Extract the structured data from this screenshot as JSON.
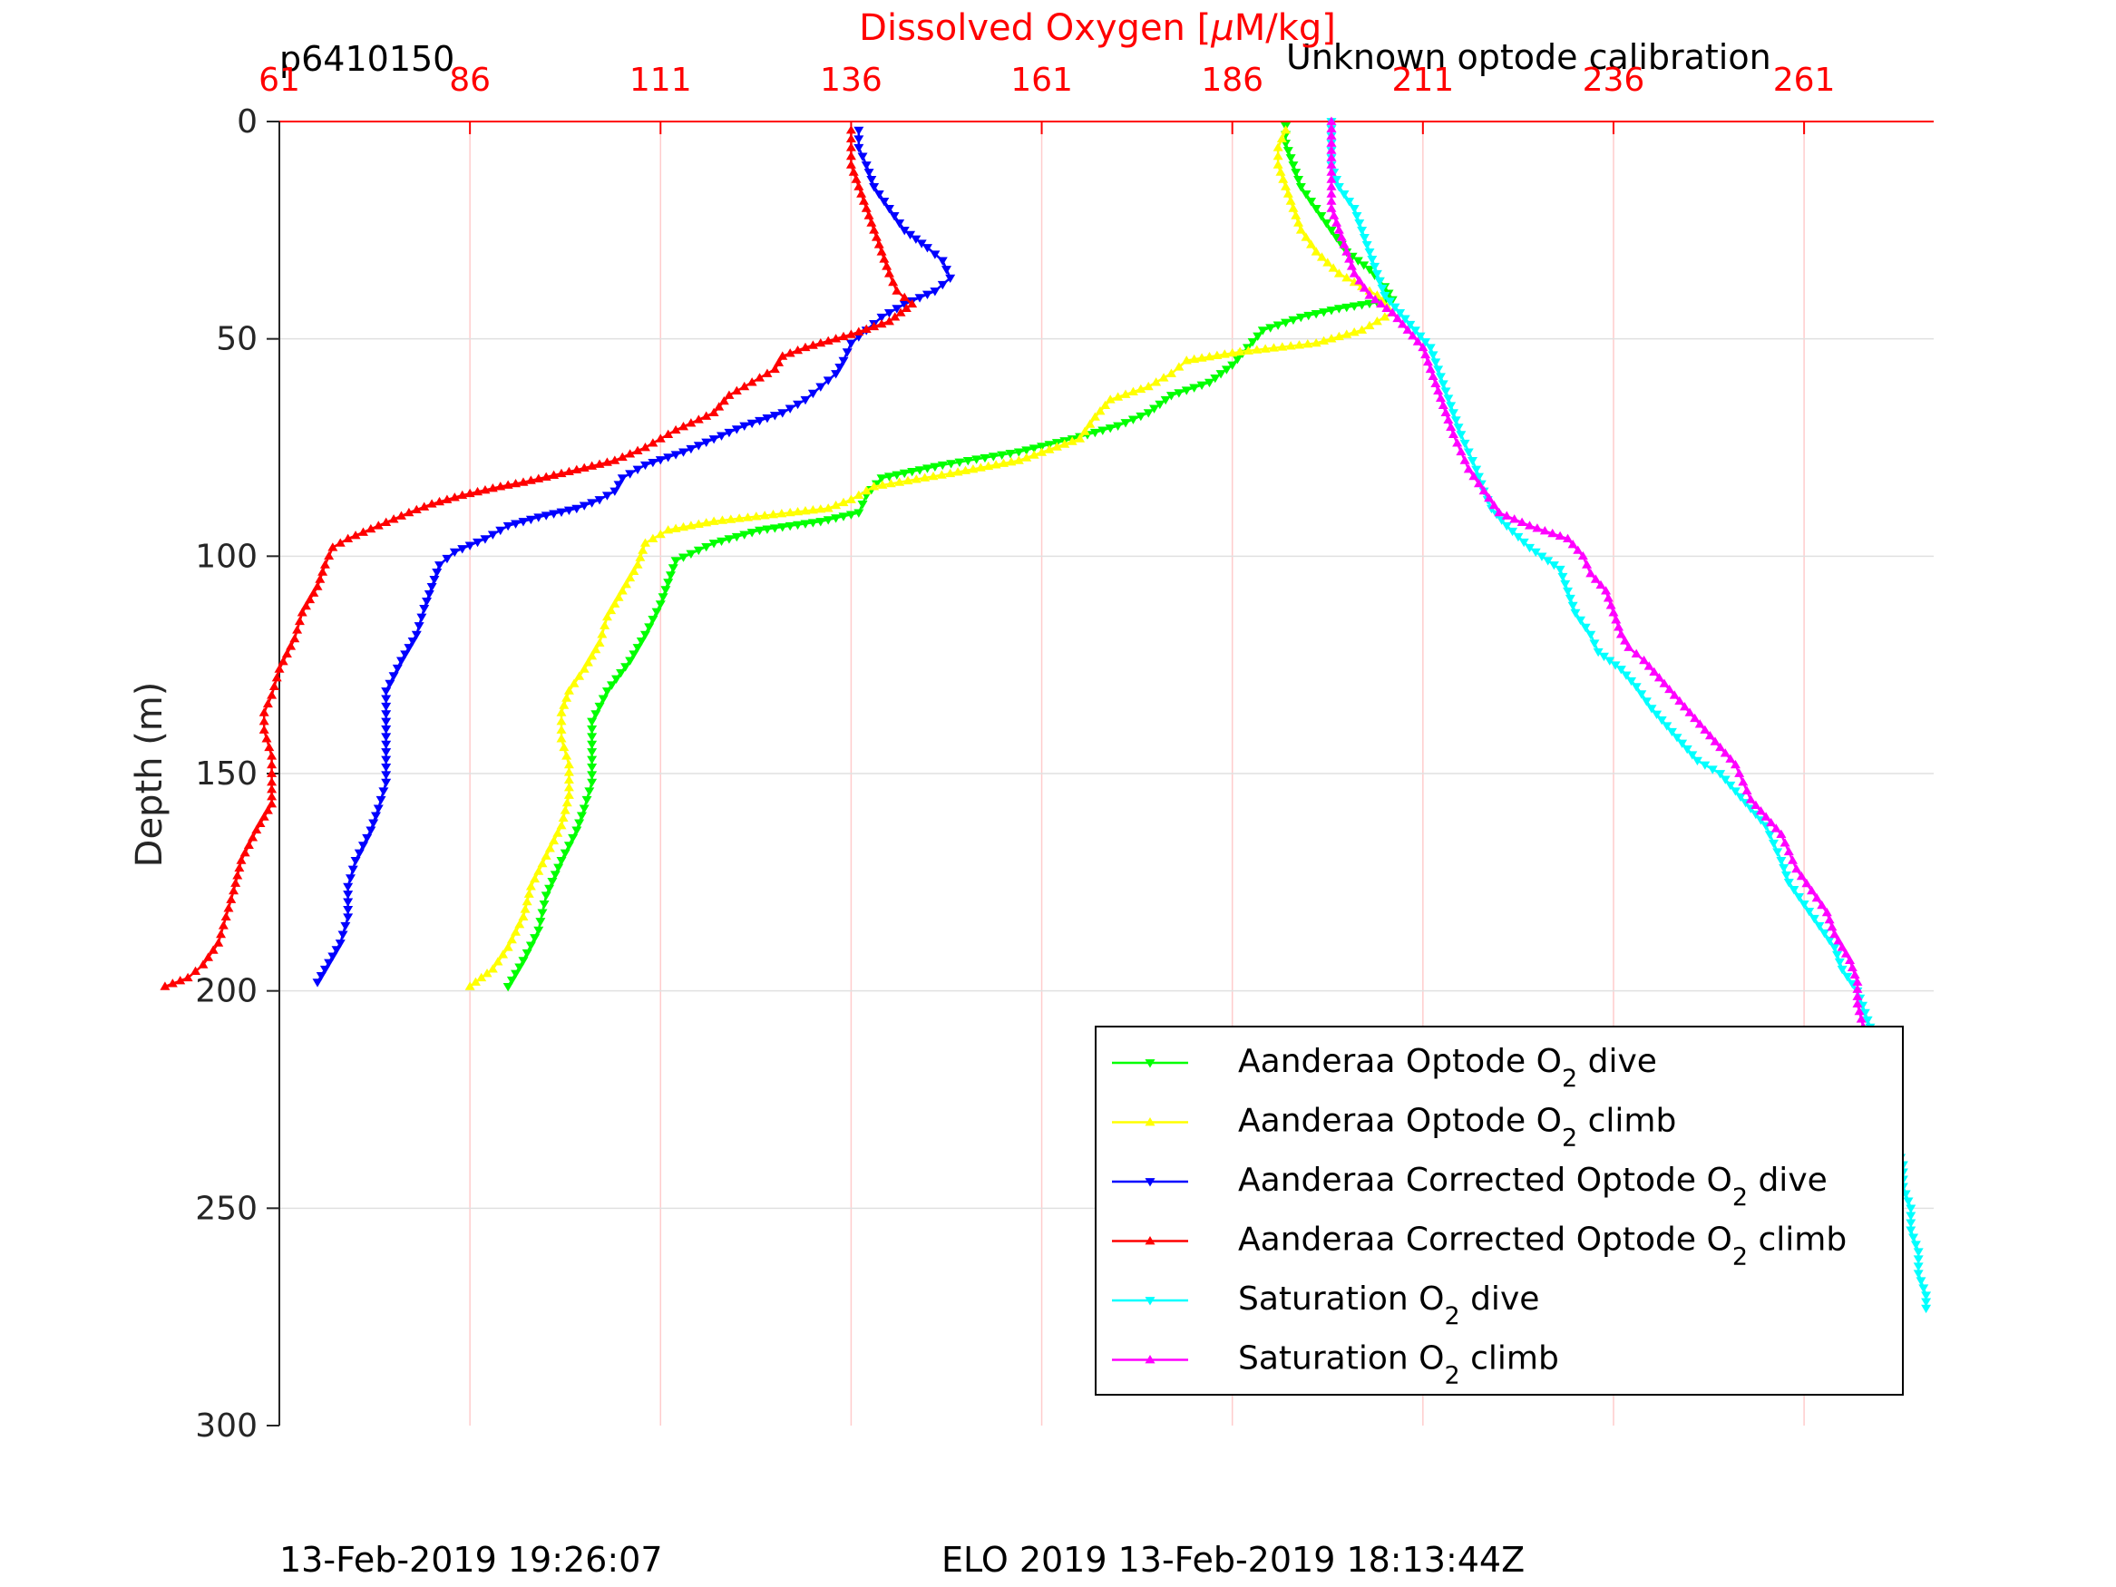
{
  "colors": {
    "axis_x": "#ff0000",
    "axis_y": "#262626",
    "grid": "#ffcccc",
    "grid_y": "#e0e0e0",
    "legend_border": "#000000"
  },
  "header": {
    "left": "p6410150",
    "right": "Unknown optode calibration"
  },
  "footer": {
    "left": "13-Feb-2019 19:26:07",
    "right": "ELO 2019 13-Feb-2019 18:13:44Z"
  },
  "chart_data": {
    "type": "line",
    "title": "",
    "xlabel": "Dissolved Oxygen [μM/kg]",
    "ylabel": "Depth (m)",
    "xlim": [
      61,
      278
    ],
    "ylim": [
      0,
      300
    ],
    "y_reversed": true,
    "x_axis_location": "top",
    "x_ticks": [
      61,
      86,
      111,
      136,
      161,
      186,
      211,
      236,
      261
    ],
    "y_ticks": [
      0,
      50,
      100,
      150,
      200,
      250,
      300
    ],
    "grid": true,
    "legend_position": "bottom-right",
    "series": [
      {
        "name_parts": [
          "Aanderaa Optode O",
          "2",
          " dive"
        ],
        "color": "#00ff00",
        "marker": "down-triangle",
        "points": [
          [
            193,
            1
          ],
          [
            193,
            5
          ],
          [
            194,
            10
          ],
          [
            195,
            15
          ],
          [
            197,
            20
          ],
          [
            199,
            25
          ],
          [
            201,
            30
          ],
          [
            204,
            34
          ],
          [
            206,
            38
          ],
          [
            207,
            41
          ],
          [
            200,
            43
          ],
          [
            195,
            45
          ],
          [
            190,
            48
          ],
          [
            188,
            52
          ],
          [
            186,
            56
          ],
          [
            183,
            60
          ],
          [
            178,
            63
          ],
          [
            175,
            67
          ],
          [
            171,
            70
          ],
          [
            165,
            73
          ],
          [
            158,
            76
          ],
          [
            148,
            79
          ],
          [
            140,
            82
          ],
          [
            138,
            86
          ],
          [
            137,
            90
          ],
          [
            132,
            92
          ],
          [
            124,
            94
          ],
          [
            118,
            97
          ],
          [
            113,
            101
          ],
          [
            112,
            106
          ],
          [
            111,
            111
          ],
          [
            109,
            118
          ],
          [
            107,
            124
          ],
          [
            104,
            131
          ],
          [
            102,
            138
          ],
          [
            102,
            145
          ],
          [
            102,
            152
          ],
          [
            101,
            158
          ],
          [
            100,
            163
          ],
          [
            98,
            170
          ],
          [
            96,
            178
          ],
          [
            95,
            186
          ],
          [
            93,
            193
          ],
          [
            91,
            199
          ]
        ]
      },
      {
        "name_parts": [
          "Aanderaa Optode O",
          "2",
          " climb"
        ],
        "color": "#ffff00",
        "marker": "up-triangle",
        "points": [
          [
            193,
            2
          ],
          [
            192,
            6
          ],
          [
            192,
            10
          ],
          [
            193,
            15
          ],
          [
            194,
            20
          ],
          [
            195,
            25
          ],
          [
            197,
            30
          ],
          [
            200,
            35
          ],
          [
            205,
            40
          ],
          [
            207,
            44
          ],
          [
            203,
            48
          ],
          [
            197,
            51
          ],
          [
            187,
            53
          ],
          [
            180,
            55
          ],
          [
            178,
            58
          ],
          [
            175,
            61
          ],
          [
            170,
            64
          ],
          [
            168,
            68
          ],
          [
            166,
            73
          ],
          [
            158,
            78
          ],
          [
            149,
            81
          ],
          [
            139,
            84
          ],
          [
            136,
            87
          ],
          [
            133,
            89
          ],
          [
            128,
            90
          ],
          [
            118,
            92
          ],
          [
            112,
            94
          ],
          [
            109,
            97
          ],
          [
            108,
            102
          ],
          [
            106,
            108
          ],
          [
            104,
            114
          ],
          [
            103,
            120
          ],
          [
            101,
            126
          ],
          [
            99,
            131
          ],
          [
            98,
            136
          ],
          [
            98,
            142
          ],
          [
            99,
            148
          ],
          [
            99,
            155
          ],
          [
            98,
            162
          ],
          [
            96,
            169
          ],
          [
            94,
            176
          ],
          [
            93,
            183
          ],
          [
            91,
            190
          ],
          [
            89,
            195
          ],
          [
            86,
            199
          ]
        ]
      },
      {
        "name_parts": [
          "Aanderaa Corrected Optode O",
          "2",
          " dive"
        ],
        "color": "#0000ff",
        "marker": "down-triangle",
        "points": [
          [
            137,
            2
          ],
          [
            137,
            6
          ],
          [
            138,
            10
          ],
          [
            139,
            15
          ],
          [
            141,
            20
          ],
          [
            143,
            25
          ],
          [
            146,
            29
          ],
          [
            148,
            32
          ],
          [
            149,
            36
          ],
          [
            147,
            39
          ],
          [
            143,
            42
          ],
          [
            140,
            45
          ],
          [
            138,
            48
          ],
          [
            136,
            51
          ],
          [
            135,
            55
          ],
          [
            134,
            58
          ],
          [
            132,
            61
          ],
          [
            130,
            64
          ],
          [
            127,
            67
          ],
          [
            122,
            70
          ],
          [
            118,
            73
          ],
          [
            114,
            76
          ],
          [
            109,
            79
          ],
          [
            106,
            82
          ],
          [
            105,
            85
          ],
          [
            103,
            87
          ],
          [
            100,
            89
          ],
          [
            95,
            91
          ],
          [
            91,
            93
          ],
          [
            88,
            96
          ],
          [
            84,
            99
          ],
          [
            82,
            102
          ],
          [
            81,
            107
          ],
          [
            80,
            112
          ],
          [
            79,
            118
          ],
          [
            77,
            124
          ],
          [
            75,
            131
          ],
          [
            75,
            138
          ],
          [
            75,
            145
          ],
          [
            75,
            152
          ],
          [
            74,
            158
          ],
          [
            73,
            163
          ],
          [
            71,
            170
          ],
          [
            70,
            176
          ],
          [
            70,
            183
          ],
          [
            69,
            189
          ],
          [
            67,
            195
          ],
          [
            66,
            198
          ]
        ]
      },
      {
        "name_parts": [
          "Aanderaa Corrected Optode O",
          "2",
          " climb"
        ],
        "color": "#ff0000",
        "marker": "up-triangle",
        "points": [
          [
            136,
            2
          ],
          [
            136,
            6
          ],
          [
            136,
            10
          ],
          [
            137,
            15
          ],
          [
            138,
            20
          ],
          [
            139,
            25
          ],
          [
            140,
            30
          ],
          [
            141,
            35
          ],
          [
            142,
            39
          ],
          [
            144,
            42
          ],
          [
            141,
            46
          ],
          [
            136,
            49
          ],
          [
            130,
            52
          ],
          [
            127,
            54
          ],
          [
            126,
            57
          ],
          [
            123,
            60
          ],
          [
            120,
            63
          ],
          [
            118,
            67
          ],
          [
            113,
            71
          ],
          [
            109,
            75
          ],
          [
            105,
            78
          ],
          [
            98,
            81
          ],
          [
            93,
            83
          ],
          [
            90,
            84
          ],
          [
            85,
            86
          ],
          [
            81,
            88
          ],
          [
            78,
            90
          ],
          [
            74,
            93
          ],
          [
            70,
            96
          ],
          [
            68,
            98
          ],
          [
            67,
            102
          ],
          [
            66,
            107
          ],
          [
            64,
            113
          ],
          [
            63,
            119
          ],
          [
            61,
            126
          ],
          [
            60,
            132
          ],
          [
            59,
            136
          ],
          [
            59,
            140
          ],
          [
            60,
            146
          ],
          [
            60,
            152
          ],
          [
            60,
            157
          ],
          [
            58,
            163
          ],
          [
            56,
            170
          ],
          [
            55,
            177
          ],
          [
            54,
            183
          ],
          [
            53,
            189
          ],
          [
            51,
            194
          ],
          [
            49,
            197
          ],
          [
            46,
            199
          ]
        ]
      },
      {
        "name_parts": [
          "Saturation O",
          "2",
          " dive"
        ],
        "color": "#00ffff",
        "marker": "down-triangle",
        "points": [
          [
            199,
            0
          ],
          [
            199,
            5
          ],
          [
            199,
            10
          ],
          [
            200,
            15
          ],
          [
            202,
            20
          ],
          [
            203,
            25
          ],
          [
            204,
            30
          ],
          [
            205,
            35
          ],
          [
            206,
            40
          ],
          [
            208,
            44
          ],
          [
            210,
            48
          ],
          [
            212,
            52
          ],
          [
            213,
            57
          ],
          [
            214,
            62
          ],
          [
            215,
            67
          ],
          [
            216,
            72
          ],
          [
            217,
            76
          ],
          [
            218,
            80
          ],
          [
            219,
            85
          ],
          [
            220,
            89
          ],
          [
            222,
            93
          ],
          [
            225,
            98
          ],
          [
            229,
            103
          ],
          [
            230,
            108
          ],
          [
            231,
            113
          ],
          [
            233,
            118
          ],
          [
            234,
            122
          ],
          [
            237,
            126
          ],
          [
            239,
            130
          ],
          [
            241,
            135
          ],
          [
            243,
            139
          ],
          [
            245,
            143
          ],
          [
            247,
            147
          ],
          [
            250,
            150
          ],
          [
            252,
            154
          ],
          [
            254,
            158
          ],
          [
            256,
            162
          ],
          [
            257,
            166
          ],
          [
            258,
            170
          ],
          [
            259,
            175
          ],
          [
            261,
            180
          ],
          [
            263,
            185
          ],
          [
            265,
            190
          ],
          [
            266,
            195
          ],
          [
            268,
            200
          ],
          [
            269,
            205
          ],
          [
            270,
            210
          ],
          [
            271,
            215
          ],
          [
            271,
            220
          ],
          [
            272,
            225
          ],
          [
            273,
            230
          ],
          [
            273,
            235
          ],
          [
            274,
            240
          ],
          [
            274,
            245
          ],
          [
            275,
            250
          ],
          [
            275,
            255
          ],
          [
            276,
            260
          ],
          [
            276,
            265
          ],
          [
            277,
            270
          ],
          [
            277,
            273
          ]
        ]
      },
      {
        "name_parts": [
          "Saturation O",
          "2",
          " climb"
        ],
        "color": "#ff00ff",
        "marker": "up-triangle",
        "points": [
          [
            199,
            0
          ],
          [
            199,
            5
          ],
          [
            199,
            10
          ],
          [
            199,
            15
          ],
          [
            199,
            20
          ],
          [
            200,
            25
          ],
          [
            201,
            30
          ],
          [
            202,
            35
          ],
          [
            204,
            40
          ],
          [
            207,
            44
          ],
          [
            209,
            48
          ],
          [
            211,
            52
          ],
          [
            212,
            57
          ],
          [
            213,
            62
          ],
          [
            214,
            67
          ],
          [
            215,
            72
          ],
          [
            216,
            76
          ],
          [
            217,
            80
          ],
          [
            219,
            85
          ],
          [
            221,
            90
          ],
          [
            225,
            93
          ],
          [
            230,
            96
          ],
          [
            232,
            100
          ],
          [
            233,
            104
          ],
          [
            235,
            108
          ],
          [
            236,
            113
          ],
          [
            237,
            118
          ],
          [
            238,
            121
          ],
          [
            240,
            124
          ],
          [
            242,
            128
          ],
          [
            244,
            132
          ],
          [
            246,
            136
          ],
          [
            248,
            140
          ],
          [
            250,
            144
          ],
          [
            252,
            148
          ],
          [
            253,
            152
          ],
          [
            254,
            156
          ],
          [
            256,
            160
          ],
          [
            258,
            164
          ],
          [
            259,
            168
          ],
          [
            260,
            172
          ],
          [
            262,
            177
          ],
          [
            264,
            182
          ],
          [
            265,
            187
          ],
          [
            267,
            193
          ],
          [
            268,
            198
          ],
          [
            268,
            203
          ],
          [
            269,
            210
          ],
          [
            269,
            217
          ],
          [
            270,
            224
          ],
          [
            271,
            231
          ],
          [
            272,
            238
          ],
          [
            272,
            245
          ]
        ]
      }
    ]
  }
}
